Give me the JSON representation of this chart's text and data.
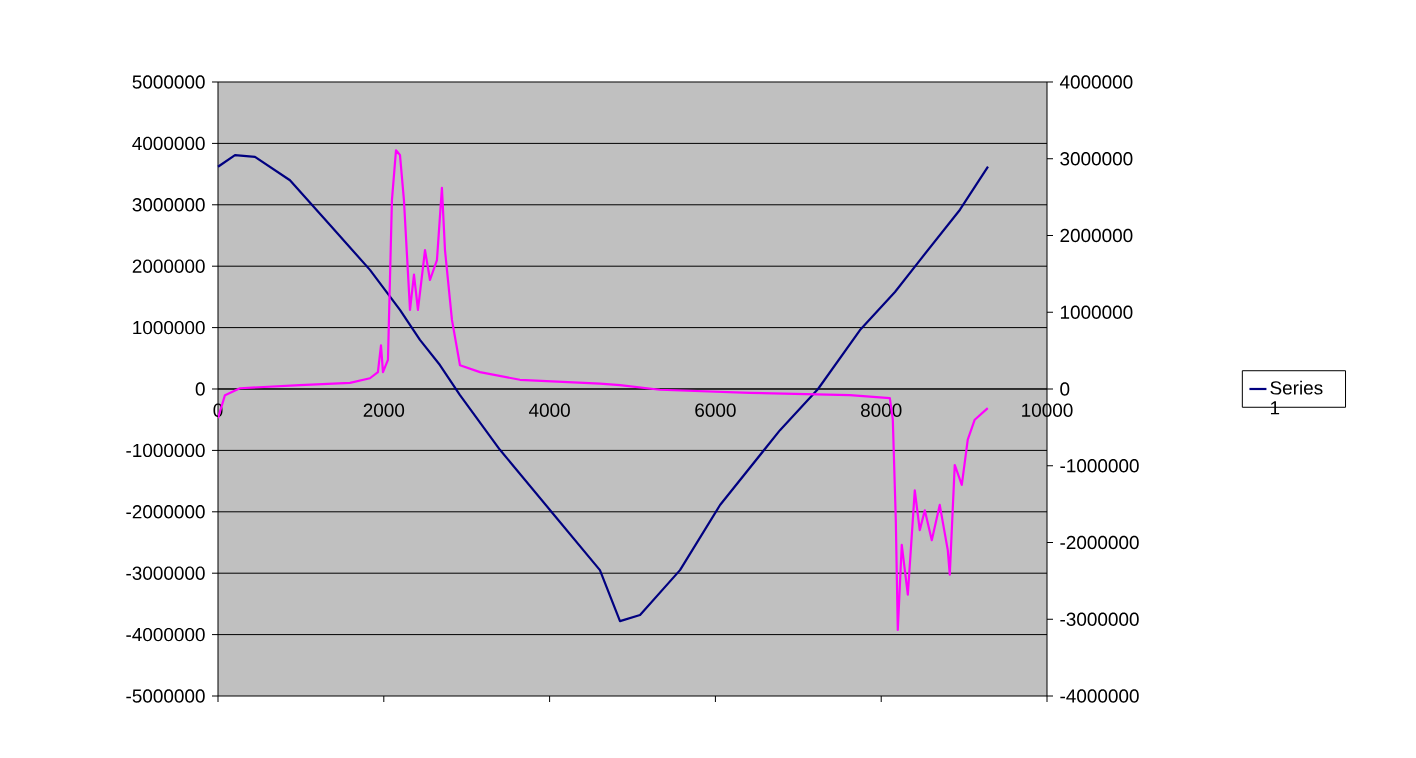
{
  "chart_data": {
    "type": "line",
    "xlim": [
      0,
      10000
    ],
    "xticks": [
      0,
      2000,
      4000,
      6000,
      8000,
      10000
    ],
    "ylim": [
      -5000000,
      5000000
    ],
    "yticks": [
      -5000000,
      -4000000,
      -3000000,
      -2000000,
      -1000000,
      0,
      1000000,
      2000000,
      3000000,
      4000000,
      5000000
    ],
    "y2lim": [
      -4000000,
      4000000
    ],
    "y2ticks": [
      -4000000,
      -3000000,
      -2000000,
      -1000000,
      0,
      1000000,
      2000000,
      3000000,
      4000000
    ],
    "grid": "y",
    "legend": "right",
    "marker": "none",
    "line_style": "solid",
    "series": [
      {
        "name": "Series 1",
        "color": "#000080",
        "x": [
          0,
          205,
          446,
          868,
          1351,
          1833,
          2195,
          2436,
          2677,
          2919,
          3401,
          4004,
          4607,
          4849,
          5091,
          5573,
          6056,
          6779,
          7238,
          7744,
          8166,
          8468,
          8950,
          9288
        ],
        "values": [
          3620000,
          3810000,
          3780000,
          3400000,
          2670000,
          1940000,
          1290000,
          800000,
          390000,
          -100000,
          -990000,
          -1970000,
          -2950000,
          -3780000,
          -3680000,
          -2950000,
          -1890000,
          -670000,
          0,
          960000,
          1580000,
          2100000,
          2920000,
          3620000
        ]
      },
      {
        "color": "#ff00ff",
        "axis": "y2",
        "x": [
          0,
          84,
          265,
          989,
          1592,
          1833,
          1929,
          1966,
          1990,
          2050,
          2098,
          2147,
          2195,
          2243,
          2316,
          2364,
          2412,
          2497,
          2557,
          2641,
          2701,
          2738,
          2822,
          2919,
          3160,
          3642,
          4607,
          4849,
          5330,
          6416,
          7622,
          8104,
          8140,
          8176,
          8200,
          8248,
          8321,
          8405,
          8465,
          8526,
          8610,
          8706,
          8803,
          8827,
          8887,
          8972,
          9044,
          9128,
          9285
        ],
        "values": [
          -380000,
          -80000,
          10000,
          50000,
          80000,
          140000,
          220000,
          570000,
          220000,
          380000,
          2460000,
          3110000,
          3050000,
          2460000,
          1030000,
          1490000,
          1030000,
          1810000,
          1420000,
          1680000,
          2620000,
          1810000,
          900000,
          310000,
          220000,
          120000,
          70000,
          50000,
          -10000,
          -50000,
          -80000,
          -120000,
          -400000,
          -1710000,
          -3140000,
          -2030000,
          -2680000,
          -1320000,
          -1840000,
          -1580000,
          -1970000,
          -1510000,
          -2100000,
          -2420000,
          -990000,
          -1250000,
          -660000,
          -400000,
          -250000
        ]
      }
    ]
  }
}
